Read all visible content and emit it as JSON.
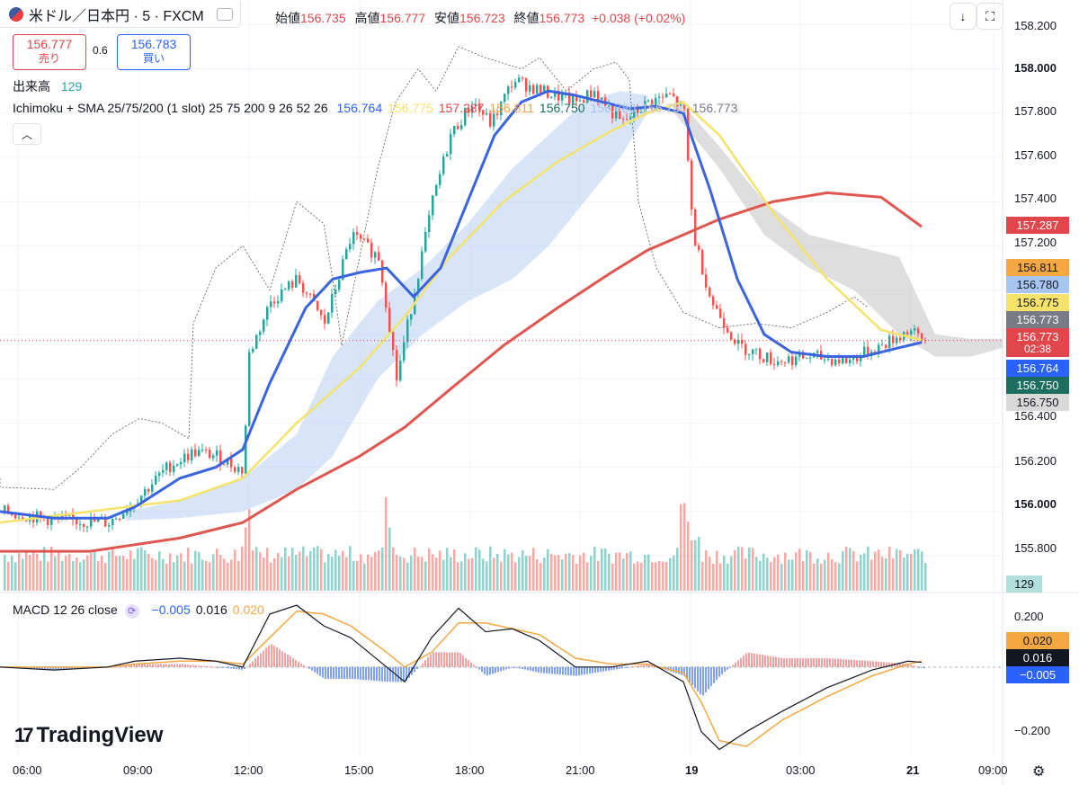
{
  "header": {
    "symbol": "米ドル／日本円 · 5 · FXCM",
    "ohlc": [
      {
        "label": "始値",
        "value": "156.735"
      },
      {
        "label": "高値",
        "value": "156.777"
      },
      {
        "label": "安値",
        "value": "156.723"
      },
      {
        "label": "終値",
        "value": "156.773"
      }
    ],
    "change": "+0.038 (+0.02%)",
    "sell_price": "156.777",
    "sell_label": "売り",
    "buy_price": "156.783",
    "buy_label": "買い",
    "spread": "0.6",
    "volume_label": "出来高",
    "volume_value": "129",
    "indicator_name": "Ichimoku + SMA 25/75/200 (1 slot)",
    "indicator_params": "25 75 200 9 26 52 26",
    "indicator_values": [
      {
        "value": "156.764",
        "color": "#2962ff"
      },
      {
        "value": "156.775",
        "color": "#f5e26a"
      },
      {
        "value": "157.287",
        "color": "#e0464a"
      },
      {
        "value": "156.811",
        "color": "#f5a742"
      },
      {
        "value": "156.750",
        "color": "#1e6e5f"
      },
      {
        "value": "156.780",
        "color": "#a8c5f0"
      },
      {
        "value": "156.750",
        "color": "#c9c9c9"
      },
      {
        "value": "156.773",
        "color": "#787b86"
      }
    ],
    "macd_label": "MACD",
    "macd_params": "12 26 close",
    "macd_values": [
      {
        "value": "−0.005",
        "color": "#2962ff"
      },
      {
        "value": "0.016",
        "color": "#131722"
      },
      {
        "value": "0.020",
        "color": "#f5a742"
      }
    ],
    "logo_text": "TradingView",
    "icons": [
      "flag-icon",
      "fullscreen-icon",
      "download-icon",
      "screenshot-icon",
      "collapse-icon",
      "macd-refresh-icon",
      "settings-gear-icon"
    ]
  },
  "price_axis": {
    "ticks": [
      "158.200",
      "158.000",
      "157.800",
      "157.600",
      "157.400",
      "157.200",
      "156.400",
      "156.200",
      "156.000",
      "155.800"
    ],
    "labels": [
      {
        "value": "157.287",
        "bg": "#e0464a",
        "fg": "#ffffff"
      },
      {
        "value": "156.811",
        "bg": "#f5a742",
        "fg": "#131722"
      },
      {
        "value": "156.780",
        "bg": "#a8c5f0",
        "fg": "#131722"
      },
      {
        "value": "156.775",
        "bg": "#f5e26a",
        "fg": "#131722"
      },
      {
        "value": "156.773",
        "bg": "#787b86",
        "fg": "#ffffff"
      },
      {
        "value": "156.773",
        "bg": "#e0464a",
        "fg": "#ffffff"
      },
      {
        "value": "02:38",
        "bg": "#e0464a",
        "fg": "#ffffff"
      },
      {
        "value": "156.764",
        "bg": "#2962ff",
        "fg": "#ffffff"
      },
      {
        "value": "156.750",
        "bg": "#1e6e5f",
        "fg": "#ffffff"
      },
      {
        "value": "156.750",
        "bg": "#d9d9d9",
        "fg": "#131722"
      }
    ],
    "volume_label": "129"
  },
  "macd_axis": {
    "ticks": [
      "0.200",
      "−0.200"
    ],
    "labels": [
      {
        "value": "0.020",
        "bg": "#f5a742",
        "fg": "#131722"
      },
      {
        "value": "0.016",
        "bg": "#131722",
        "fg": "#ffffff"
      },
      {
        "value": "−0.005",
        "bg": "#2962ff",
        "fg": "#ffffff"
      }
    ]
  },
  "time_axis": {
    "ticks": [
      "06:00",
      "09:00",
      "12:00",
      "15:00",
      "18:00",
      "21:00",
      "19",
      "03:00",
      "21",
      "09:00"
    ]
  },
  "chart_data": {
    "type": "candlestick",
    "symbol": "USD/JPY",
    "interval": "5",
    "ylim": [
      155.65,
      158.25
    ],
    "grid": true,
    "price_series": {
      "x": [
        0,
        60,
        120,
        150,
        185,
        215,
        240,
        270,
        275,
        300,
        330,
        360,
        390,
        420,
        430,
        440,
        460,
        480,
        500,
        525,
        545,
        570,
        600,
        640,
        660,
        690,
        720,
        745,
        760,
        770,
        790,
        820,
        860,
        900,
        940,
        980,
        1010,
        1025
      ],
      "close": [
        156.0,
        155.96,
        155.95,
        156.05,
        156.2,
        156.27,
        156.25,
        156.18,
        156.7,
        156.95,
        157.05,
        156.85,
        157.25,
        157.15,
        156.9,
        156.6,
        157.0,
        157.4,
        157.7,
        157.85,
        157.75,
        157.95,
        157.9,
        157.85,
        157.9,
        157.75,
        157.85,
        157.88,
        157.8,
        157.25,
        156.95,
        156.75,
        156.68,
        156.7,
        156.68,
        156.75,
        156.82,
        156.773
      ]
    },
    "sma_fast_blue": {
      "x": [
        0,
        60,
        120,
        150,
        200,
        240,
        270,
        300,
        340,
        370,
        400,
        430,
        460,
        490,
        520,
        550,
        580,
        610,
        640,
        670,
        700,
        730,
        760,
        790,
        820,
        850,
        880,
        920,
        960,
        1000,
        1025
      ],
      "values": [
        156.0,
        155.97,
        155.97,
        156.02,
        156.15,
        156.2,
        156.28,
        156.58,
        156.92,
        157.05,
        157.08,
        157.1,
        156.97,
        157.1,
        157.4,
        157.7,
        157.85,
        157.9,
        157.88,
        157.85,
        157.82,
        157.83,
        157.8,
        157.45,
        157.05,
        156.8,
        156.72,
        156.7,
        156.7,
        156.74,
        156.764
      ]
    },
    "sma_mid_yellow": {
      "x": [
        0,
        100,
        200,
        270,
        330,
        400,
        450,
        500,
        560,
        620,
        680,
        720,
        760,
        800,
        860,
        920,
        980,
        1025
      ],
      "values": [
        155.95,
        156.0,
        156.05,
        156.15,
        156.4,
        156.65,
        156.88,
        157.15,
        157.4,
        157.58,
        157.72,
        157.8,
        157.85,
        157.7,
        157.35,
        157.05,
        156.82,
        156.775
      ]
    },
    "sma_slow_red": {
      "x": [
        0,
        100,
        200,
        270,
        330,
        400,
        450,
        500,
        560,
        620,
        680,
        720,
        760,
        800,
        860,
        920,
        980,
        1025
      ],
      "values": [
        155.82,
        155.82,
        155.88,
        155.95,
        156.1,
        156.25,
        156.38,
        156.55,
        156.75,
        156.92,
        157.08,
        157.18,
        157.25,
        157.32,
        157.4,
        157.44,
        157.42,
        157.287
      ]
    },
    "ichimoku_cloud_blue": {
      "x": [
        140,
        200,
        270,
        330,
        370,
        420,
        470,
        520,
        570,
        610,
        650,
        690,
        720
      ],
      "upper": [
        156.0,
        156.05,
        156.15,
        156.35,
        156.7,
        156.95,
        157.1,
        157.3,
        157.55,
        157.7,
        157.85,
        157.9,
        157.88
      ],
      "lower": [
        155.96,
        155.97,
        156.0,
        156.1,
        156.25,
        156.6,
        156.8,
        156.95,
        157.05,
        157.2,
        157.4,
        157.6,
        157.8
      ]
    },
    "ichimoku_cloud_grey": {
      "x": [
        750,
        800,
        850,
        900,
        950,
        1000,
        1040,
        1080,
        1115
      ],
      "upper": [
        157.88,
        157.65,
        157.4,
        157.25,
        157.2,
        157.15,
        156.8,
        156.78,
        156.78
      ],
      "lower": [
        157.8,
        157.55,
        157.25,
        157.1,
        157.0,
        156.8,
        156.7,
        156.7,
        156.74
      ]
    },
    "last_price": 156.773,
    "volume": {
      "last": 129
    },
    "macd": {
      "params": "12 26 close",
      "ylim": [
        -0.3,
        0.25
      ],
      "x": [
        0,
        60,
        120,
        150,
        200,
        240,
        270,
        300,
        330,
        360,
        390,
        430,
        450,
        480,
        510,
        540,
        570,
        600,
        640,
        680,
        720,
        760,
        780,
        800,
        830,
        870,
        920,
        970,
        1010,
        1025
      ],
      "macd": [
        0.0,
        -0.01,
        0.0,
        0.02,
        0.03,
        0.02,
        0.0,
        0.18,
        0.21,
        0.14,
        0.1,
        0.0,
        -0.05,
        0.1,
        0.2,
        0.12,
        0.13,
        0.09,
        0.0,
        0.0,
        0.02,
        -0.05,
        -0.22,
        -0.28,
        -0.22,
        -0.15,
        -0.07,
        -0.01,
        0.02,
        0.016
      ],
      "signal": [
        0.0,
        0.0,
        0.0,
        0.01,
        0.02,
        0.02,
        0.01,
        0.1,
        0.19,
        0.18,
        0.14,
        0.05,
        0.0,
        0.05,
        0.15,
        0.15,
        0.13,
        0.11,
        0.03,
        0.01,
        0.01,
        -0.02,
        -0.12,
        -0.25,
        -0.27,
        -0.18,
        -0.1,
        -0.03,
        0.01,
        0.02
      ],
      "last": {
        "macd": 0.016,
        "signal": 0.02,
        "histogram": -0.005
      }
    }
  }
}
